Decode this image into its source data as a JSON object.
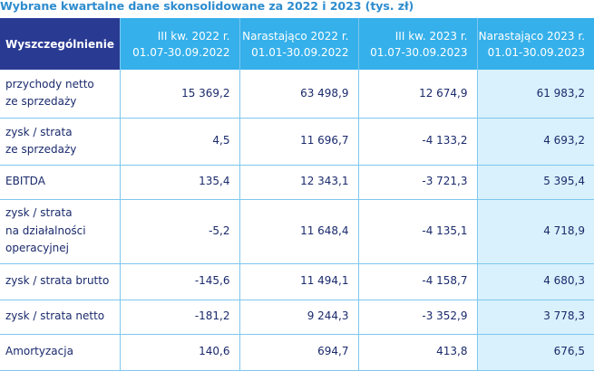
{
  "title": "Wybrane kwartalne dane skonsolidowane za 2022 i 2023 (tys. zł)",
  "header": {
    "first": "Wyszczególnienie",
    "columns": [
      {
        "line1": "III kw. 2022 r.",
        "line2": "01.07-30.09.2022"
      },
      {
        "line1": "Narastająco 2022 r.",
        "line2": "01.01-30.09.2022"
      },
      {
        "line1": "III  kw. 2023 r.",
        "line2": "01.07-30.09.2023"
      },
      {
        "line1": "Narastająco 2023 r.",
        "line2": "01.01-30.09.2023"
      }
    ]
  },
  "rows": [
    {
      "label": [
        "przychody netto",
        "ze sprzedaży"
      ],
      "values": [
        "15 369,2",
        "63 498,9",
        "12 674,9",
        "61 983,2"
      ]
    },
    {
      "label": [
        "zysk / strata",
        "ze sprzedaży"
      ],
      "values": [
        "4,5",
        "11 696,7",
        "-4 133,2",
        "4 693,2"
      ]
    },
    {
      "label": [
        "EBITDA"
      ],
      "values": [
        "135,4",
        "12 343,1",
        "-3 721,3",
        "5 395,4"
      ]
    },
    {
      "label": [
        "zysk / strata",
        "na działalności",
        "operacyjnej"
      ],
      "values": [
        "-5,2",
        "11 648,4",
        "-4 135,1",
        "4 718,9"
      ]
    },
    {
      "label": [
        "zysk / strata brutto"
      ],
      "values": [
        "-145,6",
        "11 494,1",
        "-4 158,7",
        "4 680,3"
      ]
    },
    {
      "label": [
        "zysk / strata netto"
      ],
      "values": [
        "-181,2",
        "9 244,3",
        "-3 352,9",
        "3 778,3"
      ]
    },
    {
      "label": [
        "Amortyzacja"
      ],
      "values": [
        "140,6",
        "694,7",
        "413,8",
        "676,5"
      ]
    }
  ]
}
